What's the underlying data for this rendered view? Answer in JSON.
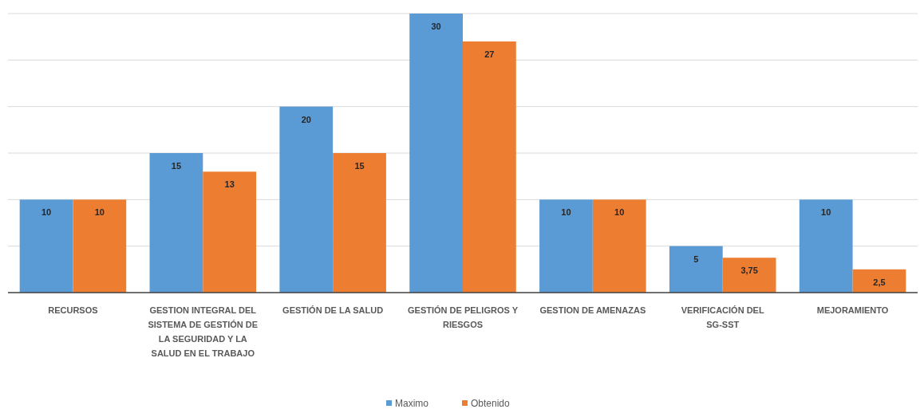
{
  "chart_data": {
    "type": "bar",
    "categories": [
      "RECURSOS",
      "GESTION INTEGRAL DEL SISTEMA DE GESTIÓN DE LA SEGURIDAD Y LA SALUD EN EL TRABAJO",
      "GESTIÓN DE LA SALUD",
      "GESTIÓN DE PELIGROS Y RIESGOS",
      "GESTION DE AMENAZAS",
      "VERIFICACIÓN DEL SG-SST",
      "MEJORAMIENTO"
    ],
    "series": [
      {
        "name": "Maximo",
        "color": "#5b9bd5",
        "values": [
          10,
          15,
          20,
          30,
          10,
          5,
          10
        ],
        "value_labels": [
          "10",
          "15",
          "20",
          "30",
          "10",
          "5",
          "10"
        ]
      },
      {
        "name": "Obtenido",
        "color": "#ed7d31",
        "values": [
          10,
          13,
          15,
          27,
          10,
          3.75,
          2.5
        ],
        "value_labels": [
          "10",
          "13",
          "15",
          "27",
          "10",
          "3,75",
          "2,5"
        ]
      }
    ],
    "ylim": [
      0,
      30
    ],
    "yticks": [
      {
        "value": 5,
        "label": null
      },
      {
        "value": 10,
        "label": null
      },
      {
        "value": 15,
        "label": null
      },
      {
        "value": 20,
        "label": null
      },
      {
        "value": 25,
        "label": null
      },
      {
        "value": 30,
        "label": null
      }
    ],
    "grid": "y",
    "legend": "bottom",
    "tick_labels": "x"
  }
}
